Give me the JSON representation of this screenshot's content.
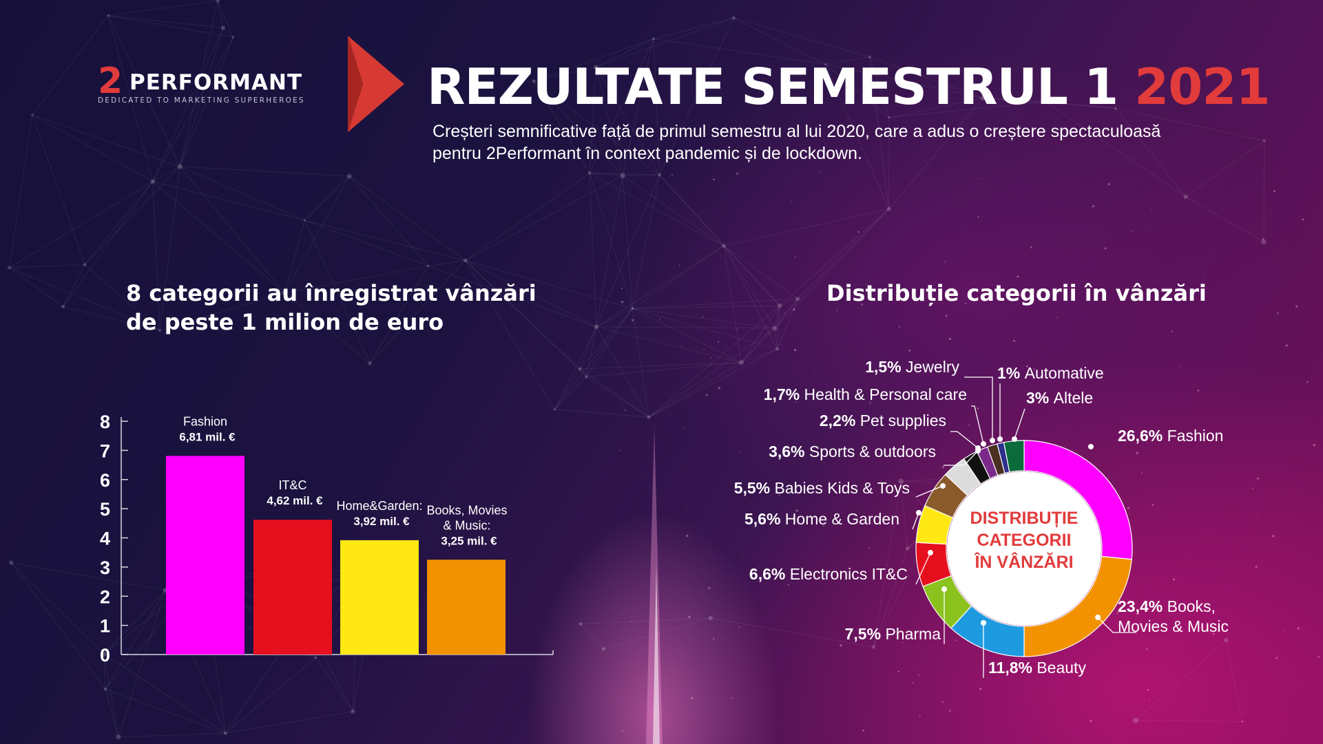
{
  "brand": {
    "mark": "2",
    "name": "PERFORMANT",
    "tagline": "DEDICATED TO MARKETING SUPERHEROES"
  },
  "header": {
    "title": "REZULTATE SEMESTRUL 1",
    "title_year": "2021",
    "subtitle": "Creșteri semnificative față de primul semestru al lui 2020, care a adus o creștere spectaculoasă pentru 2Performant în context pandemic și de lockdown."
  },
  "left_section": {
    "title": "8 categorii au înregistrat vânzări de peste 1 milion de euro"
  },
  "right_section": {
    "title": "Distribuție categorii în vânzări"
  },
  "colors": {
    "accent_red": "#e23b3b",
    "fashion": "#ff00ff",
    "itc": "#e60f1e",
    "home_garden": "#ffe814",
    "books": "#f39200"
  },
  "chart_data": [
    {
      "type": "bar",
      "title": "8 categorii au înregistrat vânzări de peste 1 milion de euro",
      "categories": [
        "Fashion",
        "IT&C",
        "Home&Garden",
        "Books, Movies & Music"
      ],
      "values": [
        6.81,
        4.62,
        3.92,
        3.25
      ],
      "category_labels": [
        "Fashion",
        "IT&C",
        "Home&Garden:",
        "Books, Movies\n& Music:"
      ],
      "value_labels": [
        "6,81 mil. €",
        "4,62 mil. €",
        "3,92 mil. €",
        "3,25 mil. €"
      ],
      "colors": [
        "#ff00ff",
        "#e60f1e",
        "#ffe814",
        "#f39200"
      ],
      "ylim": [
        0,
        8
      ],
      "yticks": [
        0,
        1,
        2,
        3,
        4,
        5,
        6,
        7,
        8
      ],
      "xlabel": "",
      "ylabel": "",
      "grid": false
    },
    {
      "type": "pie",
      "style": "donut",
      "title": "Distribuție categorii în vânzări",
      "center_label": [
        "DISTRIBUȚIE",
        "CATEGORII",
        "ÎN VÂNZĂRI"
      ],
      "center_color": "#e23b3b",
      "slices": [
        {
          "name": "Fashion",
          "value": 26.6,
          "pct_label": "26,6%",
          "name_label": "Fashion",
          "color": "#ff00ff"
        },
        {
          "name": "Books, Movies & Music",
          "value": 23.4,
          "pct_label": "23,4%",
          "name_label": "Books,\nMovies & Music",
          "color": "#f39200"
        },
        {
          "name": "Beauty",
          "value": 11.8,
          "pct_label": "11,8%",
          "name_label": "Beauty",
          "color": "#1e9be0"
        },
        {
          "name": "Pharma",
          "value": 7.5,
          "pct_label": "7,5%",
          "name_label": "Pharma",
          "color": "#8cc21e"
        },
        {
          "name": "Electronics IT&C",
          "value": 6.6,
          "pct_label": "6,6%",
          "name_label": "Electronics IT&C",
          "color": "#e60f1e"
        },
        {
          "name": "Home & Garden",
          "value": 5.6,
          "pct_label": "5,6%",
          "name_label": "Home & Garden",
          "color": "#ffe814"
        },
        {
          "name": "Babies Kids & Toys",
          "value": 5.5,
          "pct_label": "5,5%",
          "name_label": "Babies Kids & Toys",
          "color": "#8b5a2b"
        },
        {
          "name": "Sports & outdoors",
          "value": 3.6,
          "pct_label": "3,6%",
          "name_label": "Sports & outdoors",
          "color": "#dcdcdc"
        },
        {
          "name": "Pet supplies",
          "value": 2.2,
          "pct_label": "2,2%",
          "name_label": "Pet supplies",
          "color": "#111111"
        },
        {
          "name": "Health & Personal care",
          "value": 1.7,
          "pct_label": "1,7%",
          "name_label": "Health & Personal care",
          "color": "#7b2a8c"
        },
        {
          "name": "Jewelry",
          "value": 1.5,
          "pct_label": "1,5%",
          "name_label": "Jewelry",
          "color": "#4a3023"
        },
        {
          "name": "Automative",
          "value": 1.0,
          "pct_label": "1%",
          "name_label": "Automative",
          "color": "#2e2e8c"
        },
        {
          "name": "Altele",
          "value": 3.0,
          "pct_label": "3%",
          "name_label": "Altele",
          "color": "#0b6b3a"
        }
      ]
    }
  ]
}
